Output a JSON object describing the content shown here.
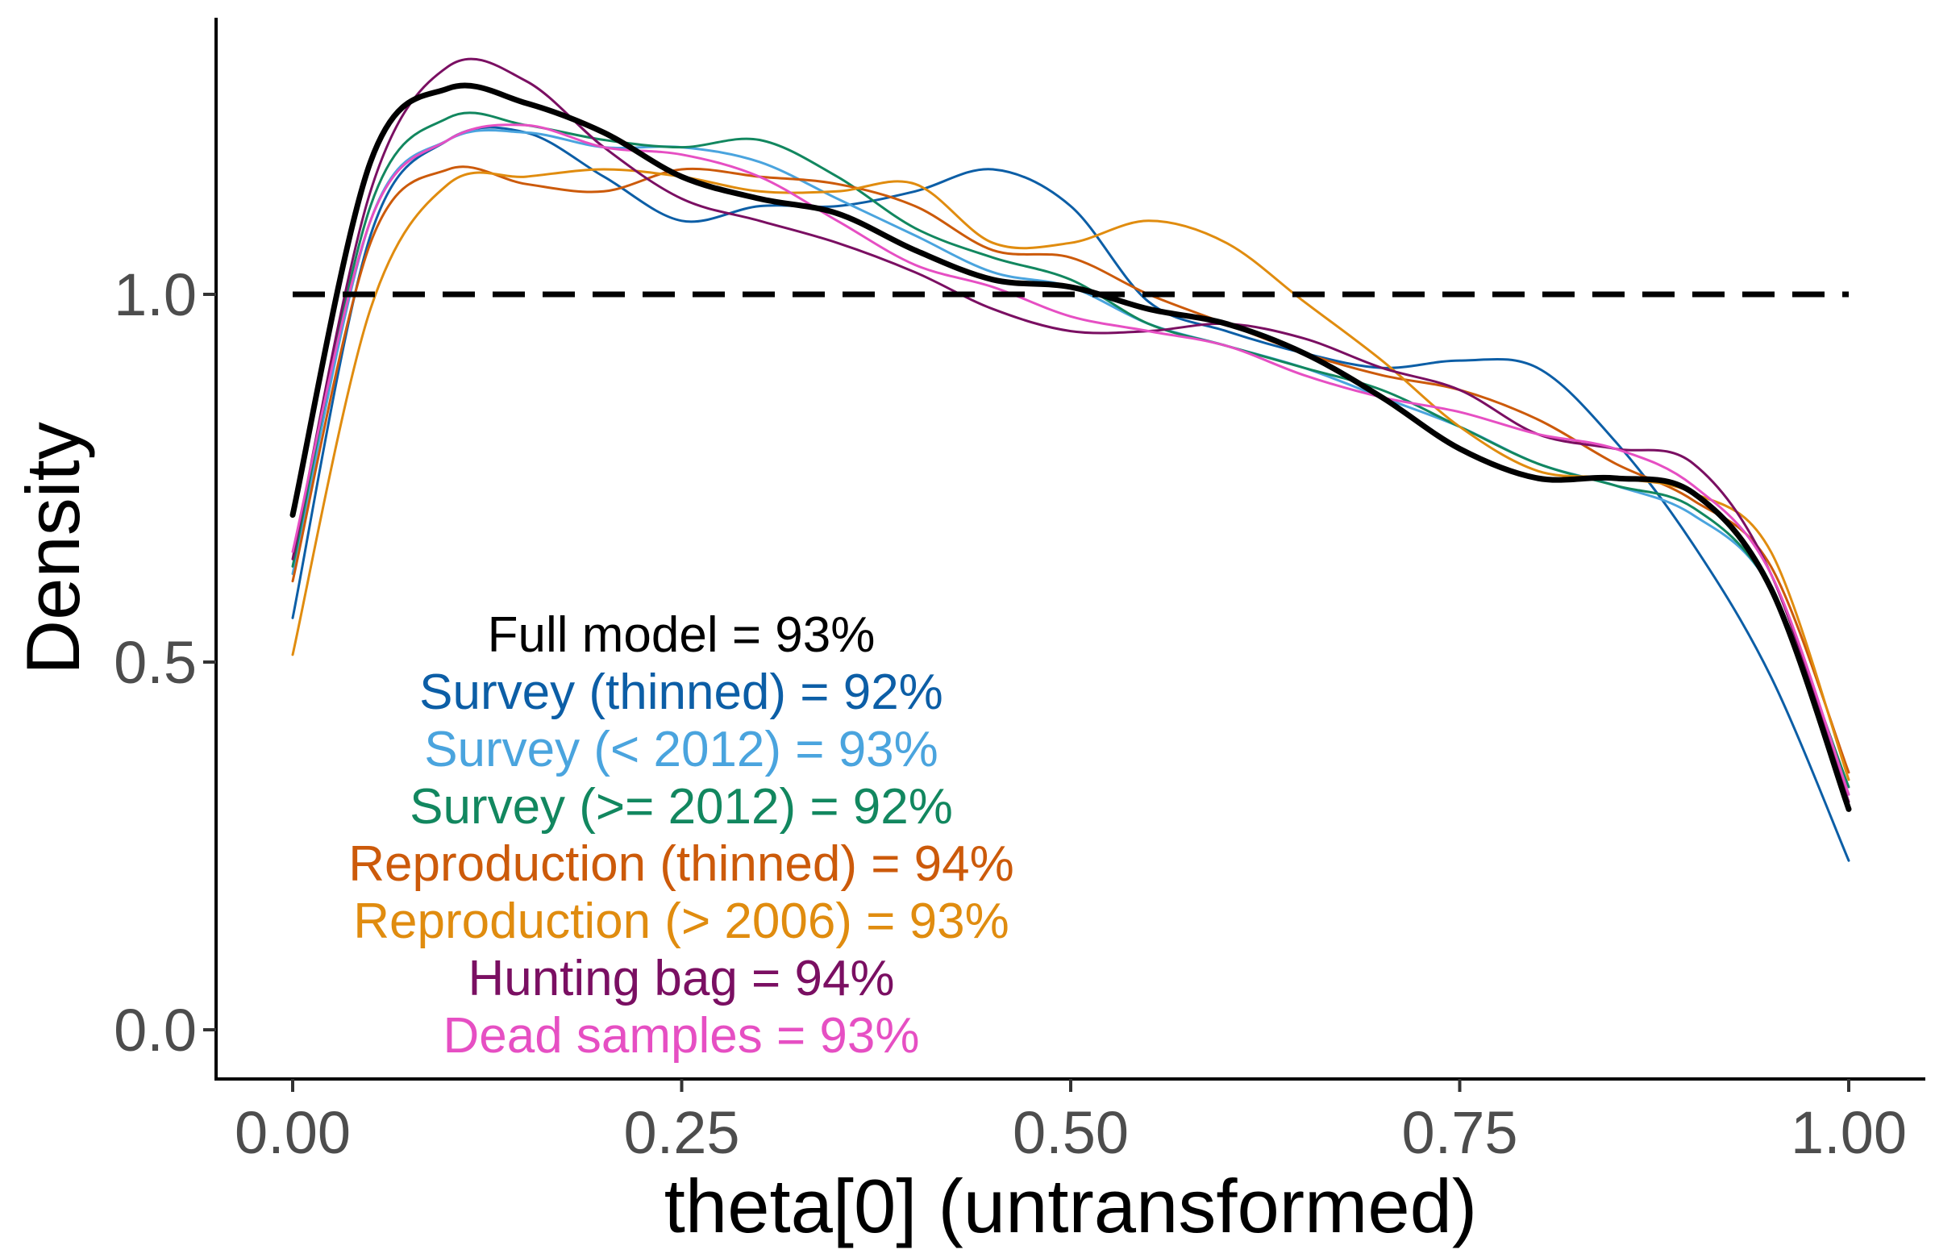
{
  "chart_data": {
    "type": "line",
    "title": "",
    "xlabel": "theta[0] (untransformed)",
    "ylabel": "Density",
    "xlim": [
      -0.05,
      1.05
    ],
    "ylim": [
      -0.07,
      1.37
    ],
    "x_ticks": [
      0.0,
      0.25,
      0.5,
      0.75,
      1.0
    ],
    "x_tick_labels": [
      "0.00",
      "0.25",
      "0.50",
      "0.75",
      "1.00"
    ],
    "y_ticks": [
      0.0,
      0.5,
      1.0
    ],
    "y_tick_labels": [
      "0.0",
      "0.5",
      "1.0"
    ],
    "grid": false,
    "reference_line": {
      "y": 1.0,
      "style": "dashed",
      "color": "#000000"
    },
    "annotations": [
      {
        "text": "Full model = 93%",
        "color": "#000000"
      },
      {
        "text": "Survey (thinned) = 92%",
        "color": "#0C5EA6"
      },
      {
        "text": "Survey (< 2012) = 93%",
        "color": "#4AA4DE"
      },
      {
        "text": "Survey (>= 2012) = 92%",
        "color": "#12875F"
      },
      {
        "text": "Reproduction (thinned) = 94%",
        "color": "#CC5A0A"
      },
      {
        "text": "Reproduction (> 2006) = 93%",
        "color": "#E08C0F"
      },
      {
        "text": "Hunting bag = 94%",
        "color": "#7A0F62"
      },
      {
        "text": "Dead samples = 93%",
        "color": "#E64FC3"
      }
    ],
    "series": [
      {
        "color": "#0C5EA6",
        "width": 3,
        "x": [
          0.0,
          0.05,
          0.1,
          0.15,
          0.2,
          0.25,
          0.3,
          0.35,
          0.4,
          0.45,
          0.5,
          0.55,
          0.6,
          0.65,
          0.7,
          0.75,
          0.8,
          0.85,
          0.9,
          0.95,
          1.0
        ],
        "y": [
          0.56,
          1.08,
          1.21,
          1.22,
          1.16,
          1.1,
          1.12,
          1.12,
          1.14,
          1.17,
          1.12,
          0.99,
          0.95,
          0.92,
          0.9,
          0.91,
          0.9,
          0.8,
          0.66,
          0.48,
          0.23
        ]
      },
      {
        "color": "#4AA4DE",
        "width": 3,
        "x": [
          0.0,
          0.05,
          0.1,
          0.15,
          0.2,
          0.25,
          0.3,
          0.35,
          0.4,
          0.45,
          0.5,
          0.55,
          0.6,
          0.65,
          0.7,
          0.75,
          0.8,
          0.85,
          0.9,
          0.95,
          1.0
        ],
        "y": [
          0.62,
          1.1,
          1.21,
          1.22,
          1.2,
          1.2,
          1.18,
          1.13,
          1.08,
          1.03,
          1.01,
          0.96,
          0.93,
          0.9,
          0.86,
          0.82,
          0.77,
          0.74,
          0.7,
          0.6,
          0.32
        ]
      },
      {
        "color": "#12875F",
        "width": 3,
        "x": [
          0.0,
          0.05,
          0.1,
          0.15,
          0.2,
          0.25,
          0.3,
          0.35,
          0.4,
          0.45,
          0.5,
          0.55,
          0.6,
          0.65,
          0.7,
          0.75,
          0.8,
          0.85,
          0.9,
          0.95,
          1.0
        ],
        "y": [
          0.63,
          1.12,
          1.24,
          1.23,
          1.21,
          1.2,
          1.21,
          1.16,
          1.09,
          1.05,
          1.02,
          0.96,
          0.93,
          0.9,
          0.87,
          0.82,
          0.77,
          0.74,
          0.71,
          0.6,
          0.33
        ]
      },
      {
        "color": "#CC5A0A",
        "width": 3,
        "x": [
          0.0,
          0.05,
          0.1,
          0.15,
          0.2,
          0.25,
          0.3,
          0.35,
          0.4,
          0.45,
          0.5,
          0.55,
          0.6,
          0.65,
          0.7,
          0.75,
          0.8,
          0.85,
          0.9,
          0.95,
          1.0
        ],
        "y": [
          0.61,
          1.07,
          1.17,
          1.15,
          1.14,
          1.17,
          1.16,
          1.15,
          1.12,
          1.06,
          1.05,
          1.0,
          0.96,
          0.92,
          0.89,
          0.87,
          0.83,
          0.77,
          0.72,
          0.63,
          0.35
        ]
      },
      {
        "color": "#E08C0F",
        "width": 3,
        "x": [
          0.0,
          0.05,
          0.1,
          0.15,
          0.2,
          0.25,
          0.3,
          0.35,
          0.4,
          0.45,
          0.5,
          0.55,
          0.6,
          0.65,
          0.7,
          0.75,
          0.8,
          0.85,
          0.9,
          0.95,
          1.0
        ],
        "y": [
          0.51,
          0.98,
          1.15,
          1.16,
          1.17,
          1.16,
          1.14,
          1.14,
          1.15,
          1.07,
          1.07,
          1.1,
          1.07,
          0.99,
          0.91,
          0.82,
          0.76,
          0.75,
          0.73,
          0.65,
          0.34
        ]
      },
      {
        "color": "#7A0F62",
        "width": 3,
        "x": [
          0.0,
          0.05,
          0.1,
          0.15,
          0.2,
          0.25,
          0.3,
          0.35,
          0.4,
          0.45,
          0.5,
          0.55,
          0.6,
          0.65,
          0.7,
          0.75,
          0.8,
          0.85,
          0.9,
          0.95,
          1.0
        ],
        "y": [
          0.64,
          1.14,
          1.31,
          1.29,
          1.2,
          1.13,
          1.1,
          1.07,
          1.03,
          0.98,
          0.95,
          0.95,
          0.96,
          0.94,
          0.9,
          0.87,
          0.81,
          0.79,
          0.77,
          0.62,
          0.31
        ]
      },
      {
        "color": "#E64FC3",
        "width": 3,
        "x": [
          0.0,
          0.05,
          0.1,
          0.15,
          0.2,
          0.25,
          0.3,
          0.35,
          0.4,
          0.45,
          0.5,
          0.55,
          0.6,
          0.65,
          0.7,
          0.75,
          0.8,
          0.85,
          0.9,
          0.95,
          1.0
        ],
        "y": [
          0.65,
          1.1,
          1.21,
          1.23,
          1.2,
          1.19,
          1.16,
          1.1,
          1.04,
          1.01,
          0.97,
          0.95,
          0.93,
          0.89,
          0.86,
          0.84,
          0.81,
          0.79,
          0.74,
          0.62,
          0.32
        ]
      },
      {
        "color": "#000000",
        "width": 7,
        "x": [
          0.0,
          0.05,
          0.1,
          0.15,
          0.2,
          0.25,
          0.3,
          0.35,
          0.4,
          0.45,
          0.5,
          0.55,
          0.6,
          0.65,
          0.7,
          0.75,
          0.8,
          0.85,
          0.9,
          0.95,
          1.0
        ],
        "y": [
          0.7,
          1.18,
          1.28,
          1.26,
          1.22,
          1.16,
          1.13,
          1.11,
          1.06,
          1.02,
          1.01,
          0.98,
          0.96,
          0.92,
          0.86,
          0.79,
          0.75,
          0.75,
          0.73,
          0.6,
          0.3
        ]
      }
    ]
  }
}
